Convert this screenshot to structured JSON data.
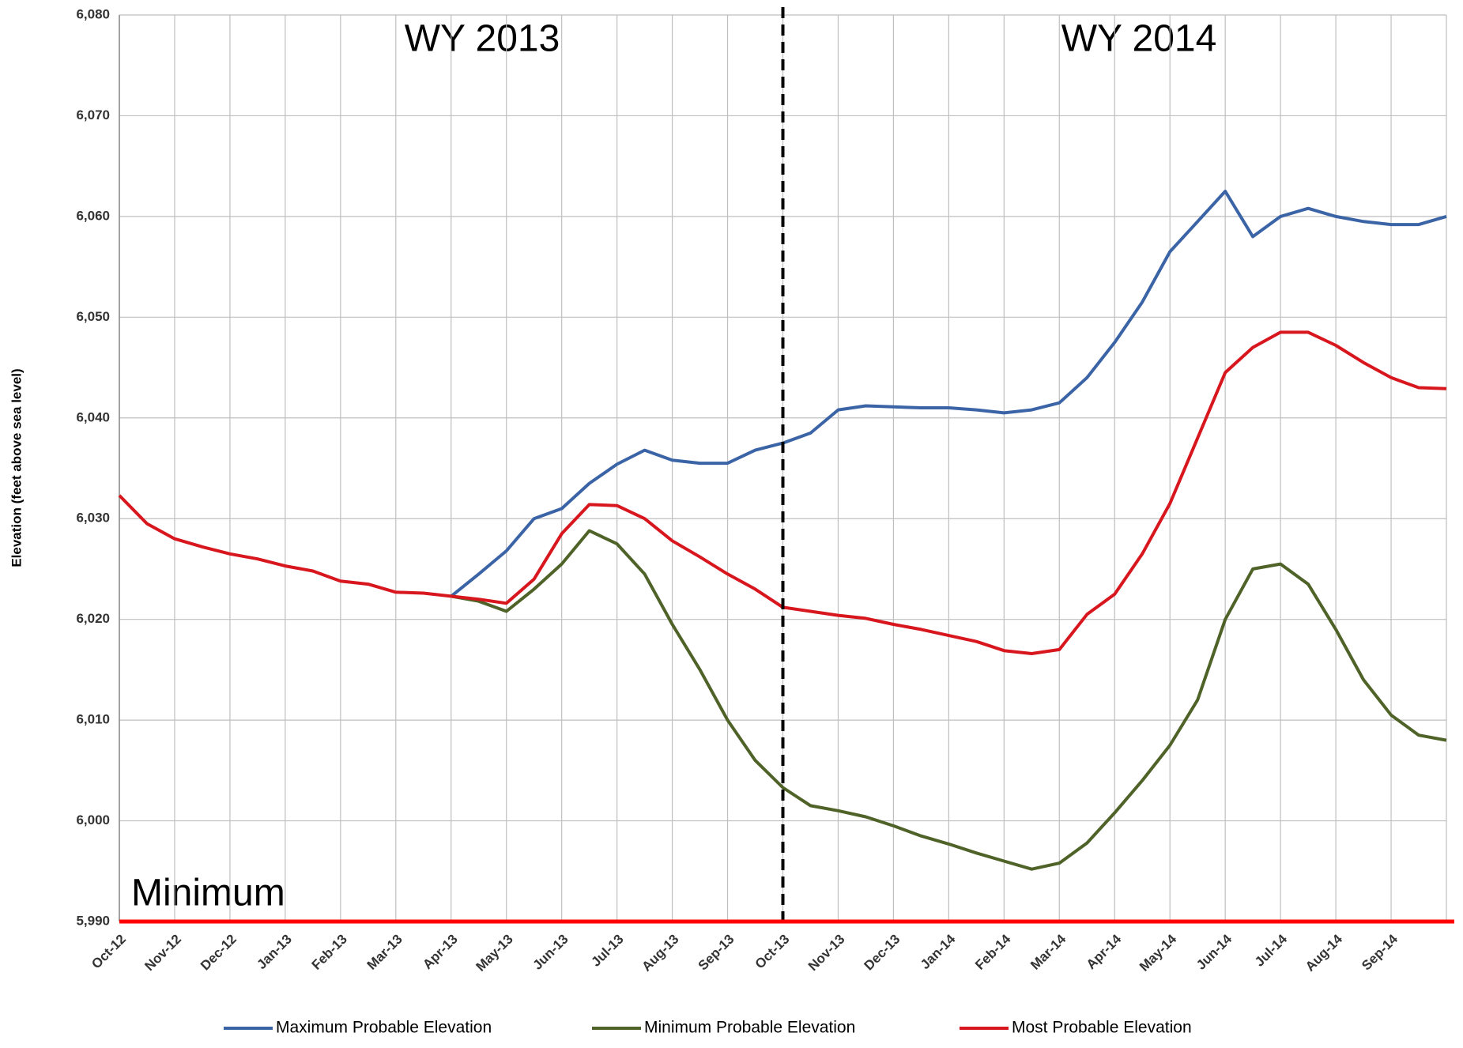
{
  "chart_data": {
    "type": "line",
    "y_label": "Elevation (feet above sea level)",
    "annotations": [
      "WY 2013",
      "WY 2014",
      "Minimum"
    ],
    "categories": [
      "Oct-12",
      null,
      "Nov-12",
      null,
      "Dec-12",
      null,
      "Jan-13",
      null,
      "Feb-13",
      null,
      "Mar-13",
      null,
      "Apr-13",
      null,
      "May-13",
      null,
      "Jun-13",
      null,
      "Jul-13",
      null,
      "Aug-13",
      null,
      "Sep-13",
      null,
      "Oct-13",
      null,
      "Nov-13",
      null,
      "Dec-13",
      null,
      "Jan-14",
      null,
      "Feb-14",
      null,
      "Mar-14",
      null,
      "Apr-14",
      null,
      "May-14",
      null,
      "Jun-14",
      null,
      "Jul-14",
      null,
      "Aug-14",
      null,
      "Sep-14",
      null,
      null
    ],
    "series": [
      {
        "name": "Maximum Probable Elevation",
        "color": "#3b64a6",
        "values": [
          null,
          null,
          null,
          null,
          null,
          null,
          null,
          null,
          null,
          null,
          null,
          null,
          6022.3,
          6024.5,
          6026.8,
          6030,
          6031,
          6033.5,
          6035.4,
          6036.8,
          6035.8,
          6035.5,
          6035.5,
          6036.8,
          6037.5,
          6038.5,
          6040.8,
          6041.2,
          6041.1,
          6041.0,
          6041,
          6040.8,
          6040.5,
          6040.8,
          6041.5,
          6044,
          6047.5,
          6051.5,
          6056.5,
          6059.5,
          6062.5,
          6058,
          6060,
          6060.8,
          6060,
          6059.5,
          6059.2,
          6059.2,
          6060
        ]
      },
      {
        "name": "Minimum Probable Elevation",
        "color": "#4f6228",
        "values": [
          null,
          null,
          null,
          null,
          null,
          null,
          null,
          null,
          null,
          null,
          null,
          null,
          6022.3,
          6021.8,
          6020.8,
          6023,
          6025.5,
          6028.8,
          6027.5,
          6024.5,
          6019.5,
          6015,
          6010,
          6006,
          6003.3,
          6001.5,
          6001,
          6000.4,
          5999.5,
          5998.5,
          5997.7,
          5996.8,
          5996,
          5995.2,
          5995.8,
          5997.8,
          6000.8,
          6004,
          6007.5,
          6012,
          6020,
          6025,
          6025.5,
          6023.5,
          6019,
          6014,
          6010.5,
          6008.5,
          6008
        ]
      },
      {
        "name": "Most Probable Elevation",
        "color": "#d7161d",
        "values": [
          6032.3,
          6029.5,
          6028,
          6027.2,
          6026.5,
          6026,
          6025.3,
          6024.8,
          6023.8,
          6023.5,
          6022.7,
          6022.6,
          6022.3,
          6022,
          6021.6,
          6024,
          6028.5,
          6031.4,
          6031.3,
          6030,
          6027.8,
          6026.2,
          6024.5,
          6023,
          6021.2,
          6020.8,
          6020.4,
          6020.1,
          6019.5,
          6019,
          6018.4,
          6017.8,
          6016.9,
          6016.6,
          6017,
          6020.5,
          6022.5,
          6026.5,
          6031.5,
          6038,
          6044.5,
          6047,
          6048.5,
          6048.5,
          6047.2,
          6045.5,
          6044,
          6043,
          6042.9
        ]
      }
    ],
    "ylim": [
      5990,
      6080
    ],
    "yticks": [
      {
        "value": 5990,
        "label": "5,990"
      },
      {
        "value": 6000,
        "label": "6,000"
      },
      {
        "value": 6010,
        "label": "6,010"
      },
      {
        "value": 6020,
        "label": "6,020"
      },
      {
        "value": 6030,
        "label": "6,030"
      },
      {
        "value": 6040,
        "label": "6,040"
      },
      {
        "value": 6050,
        "label": "6,050"
      },
      {
        "value": 6060,
        "label": "6,060"
      },
      {
        "value": 6070,
        "label": "6,070"
      },
      {
        "value": 6080,
        "label": "6,080"
      }
    ],
    "minimum_color": "#ff0000",
    "grid": true,
    "legend": "bottom"
  }
}
